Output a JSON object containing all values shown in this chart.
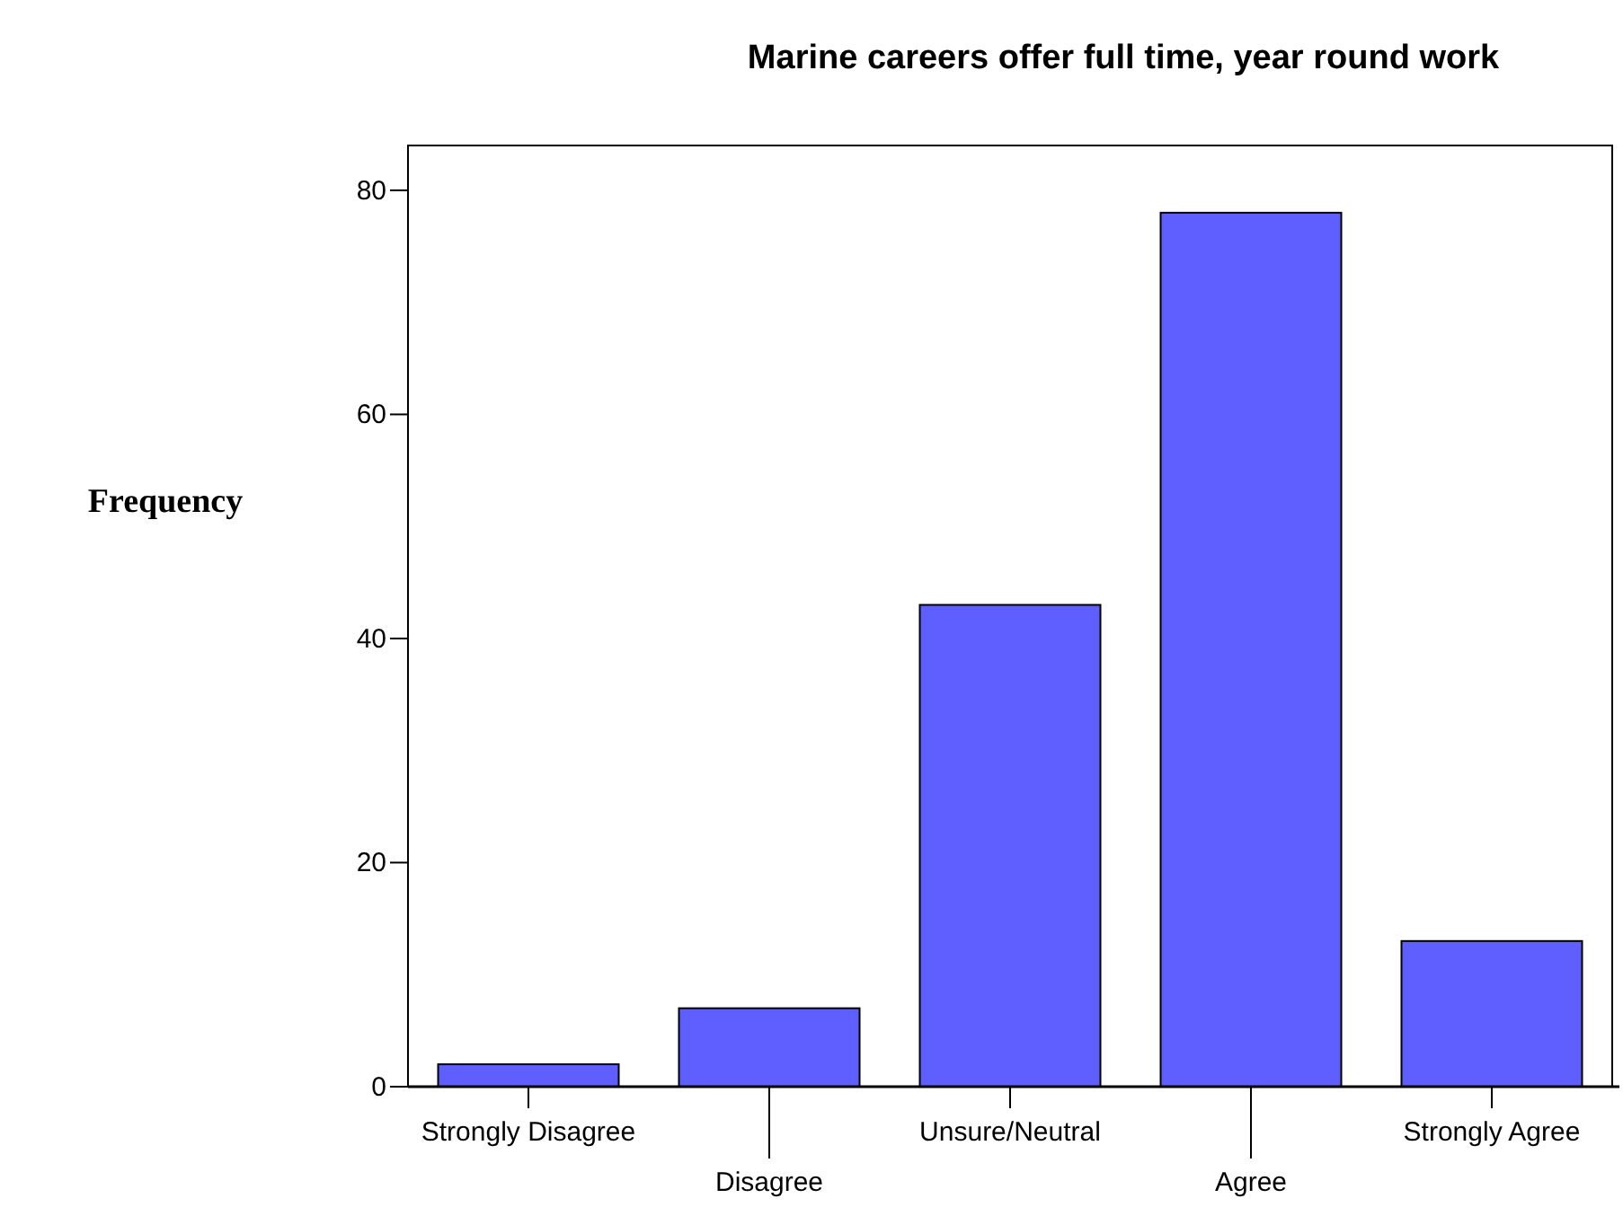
{
  "chart_data": {
    "type": "bar",
    "title": "Marine careers offer full time, year round work",
    "ylabel": "Frequency",
    "categories": [
      "Strongly Disagree",
      "Disagree",
      "Unsure/Neutral",
      "Agree",
      "Strongly Agree"
    ],
    "values": [
      2,
      7,
      43,
      78,
      13
    ],
    "color": "#5f5fff",
    "ylim": [
      0,
      84
    ],
    "yticks": [
      0,
      20,
      40,
      60,
      80
    ]
  }
}
